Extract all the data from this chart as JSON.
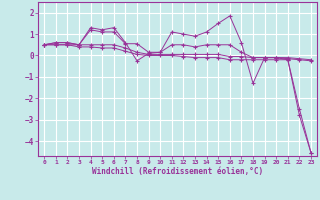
{
  "xlabel": "Windchill (Refroidissement éolien,°C)",
  "background_color": "#c8eaea",
  "line_color": "#993399",
  "grid_color": "#ffffff",
  "xlim": [
    -0.5,
    23.5
  ],
  "ylim": [
    -4.7,
    2.5
  ],
  "xticks": [
    0,
    1,
    2,
    3,
    4,
    5,
    6,
    7,
    8,
    9,
    10,
    11,
    12,
    13,
    14,
    15,
    16,
    17,
    18,
    19,
    20,
    21,
    22,
    23
  ],
  "yticks": [
    -4,
    -3,
    -2,
    -1,
    0,
    1,
    2
  ],
  "series": [
    [
      0.5,
      0.6,
      0.6,
      0.5,
      1.3,
      1.2,
      1.3,
      0.6,
      -0.25,
      0.1,
      0.15,
      1.1,
      1.0,
      0.9,
      1.1,
      1.5,
      1.85,
      0.6,
      -1.3,
      -0.1,
      -0.1,
      -0.2,
      -2.5,
      -4.55
    ],
    [
      0.5,
      0.6,
      0.6,
      0.5,
      1.2,
      1.1,
      1.1,
      0.55,
      0.55,
      0.15,
      0.15,
      0.5,
      0.5,
      0.4,
      0.5,
      0.5,
      0.5,
      0.15,
      -0.1,
      -0.1,
      -0.1,
      -0.15,
      -0.2,
      -0.25
    ],
    [
      0.5,
      0.5,
      0.5,
      0.5,
      0.5,
      0.5,
      0.5,
      0.35,
      0.15,
      0.05,
      0.05,
      0.05,
      0.05,
      0.05,
      0.05,
      0.05,
      -0.05,
      -0.05,
      -0.1,
      -0.1,
      -0.1,
      -0.1,
      -0.15,
      -0.2
    ],
    [
      0.5,
      0.5,
      0.5,
      0.4,
      0.4,
      0.35,
      0.35,
      0.2,
      0.05,
      0.0,
      0.0,
      0.0,
      -0.05,
      -0.1,
      -0.1,
      -0.1,
      -0.2,
      -0.2,
      -0.2,
      -0.2,
      -0.2,
      -0.2,
      -2.8,
      -4.55
    ]
  ]
}
